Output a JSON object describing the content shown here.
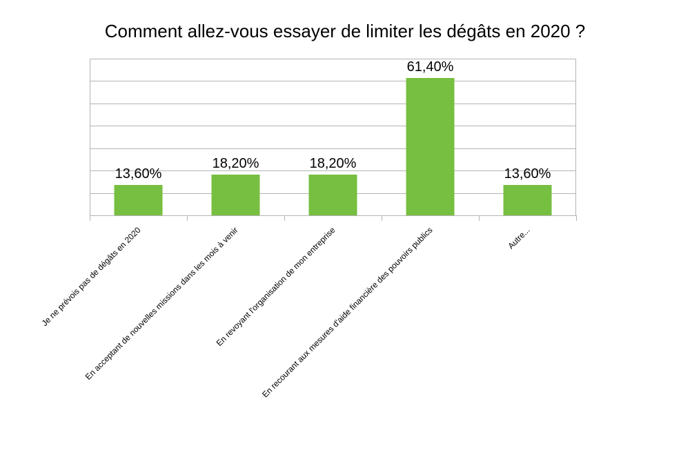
{
  "chart_data": {
    "type": "bar",
    "title": "Comment allez-vous essayer de limiter les dégâts en 2020 ?",
    "categories": [
      "Je ne prévois pas de dégâts en 2020",
      "En acceptant de nouvelles missions dans les mois à venir",
      "En revoyant l'organisation de mon entreprise",
      "En recourant aux mesures d'aide financière des pouvoirs publics",
      "Autre..."
    ],
    "values": [
      13.6,
      18.2,
      18.2,
      61.4,
      13.6
    ],
    "data_labels": [
      "13,60%",
      "18,20%",
      "18,20%",
      "61,40%",
      "13,60%"
    ],
    "ylim": [
      0,
      70
    ],
    "ytick_step": 10,
    "show_ytick_labels": false,
    "grid": true,
    "legend": "none",
    "xlabel": "",
    "ylabel": "",
    "bar_color": "#77bf40"
  }
}
